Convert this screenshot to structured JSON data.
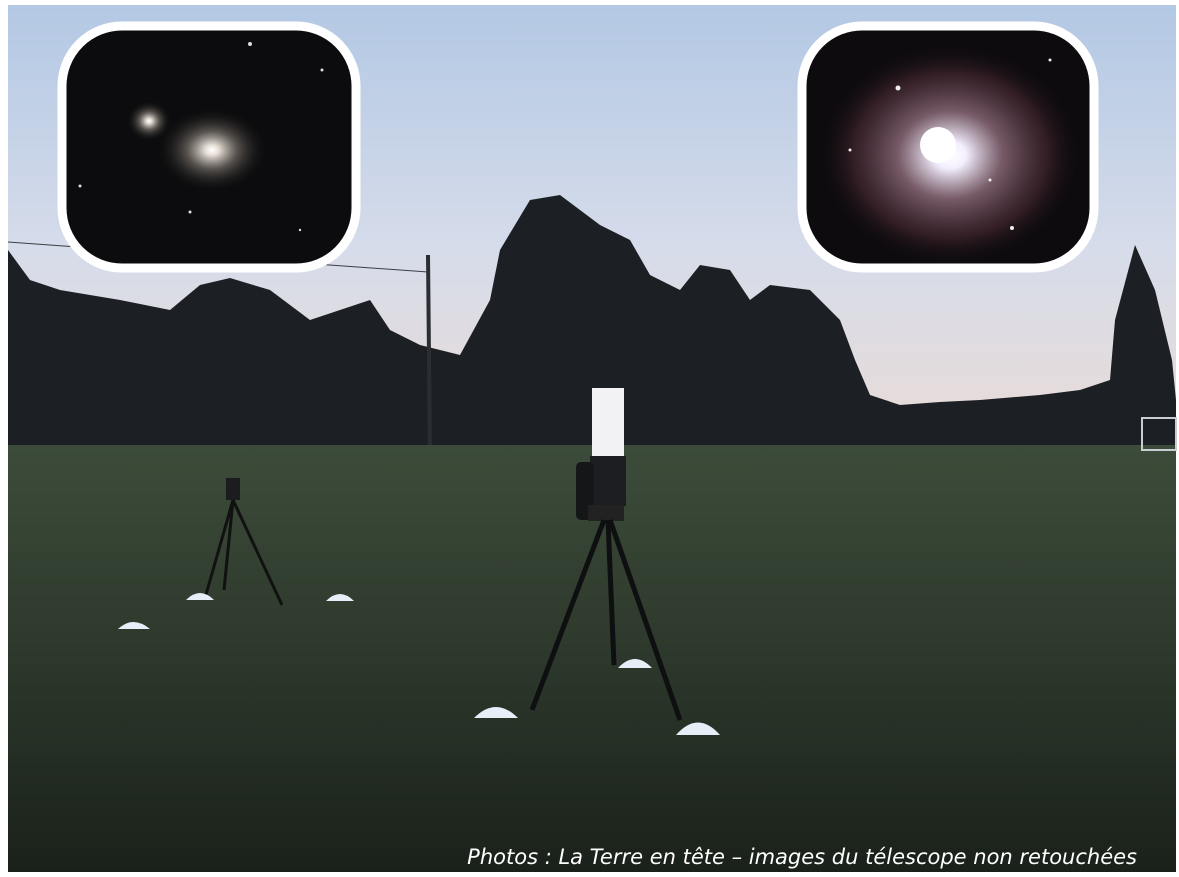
{
  "caption": "Photos : La Terre en tête – images du télescope non retouchées"
}
